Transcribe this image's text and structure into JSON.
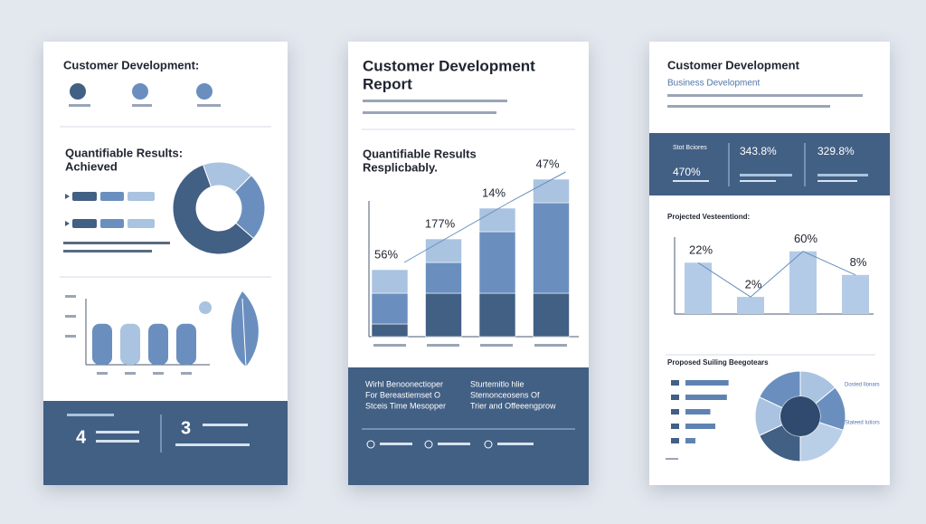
{
  "pages": [
    {
      "title": "Customer Development:",
      "heading": [
        "Quantifiable Results:",
        "Achieved"
      ],
      "donut": {
        "values": [
          18,
          24,
          58
        ],
        "colors": [
          "#a9c3e0",
          "#6a8fbf",
          "#425f84"
        ]
      },
      "bars": {
        "values": [
          62,
          62,
          62,
          62
        ],
        "colors": [
          "#6a8fbf",
          "#a9c3e0",
          "#6a8fbf",
          "#6a8fbf"
        ],
        "ylim": [
          0,
          100
        ]
      },
      "stats": [
        4,
        3
      ]
    },
    {
      "title": [
        "Customer Development",
        "Report"
      ],
      "heading": [
        "Quantifiable Results",
        "Resplicbably."
      ],
      "chart": {
        "type": "stacked-bar",
        "ylim": [
          0,
          100
        ],
        "series": [
          {
            "color": "#425f84",
            "values": [
              7,
              24,
              24,
              24
            ]
          },
          {
            "color": "#6a8fbf",
            "values": [
              17,
              17,
              34,
              50
            ]
          },
          {
            "color": "#a9c3e0",
            "values": [
              13,
              13,
              13,
              13
            ]
          }
        ],
        "annotations": [
          "56%",
          "177%",
          "14%",
          "47%"
        ]
      },
      "footer": {
        "left": [
          "Wirhl Benoonectioper",
          "For Bereastiemset O",
          "Stceis Time Mesopper"
        ],
        "right": [
          "Sturtemitlo hlie",
          "Stemonceosens Of",
          "Trier and Offeeengprow"
        ]
      }
    },
    {
      "title": "Customer Development",
      "subtitle": "Business Development",
      "band": {
        "label": "Stot Bciores",
        "stats": [
          "343.8%",
          "329.8%",
          "470%"
        ]
      },
      "section": "Projected Vesteentiond:",
      "chart": {
        "type": "bar",
        "ylim": [
          0,
          100
        ],
        "values": [
          63,
          21,
          77,
          48
        ],
        "color": "#b3cbe6",
        "annotations": [
          "22%",
          "2%",
          "60%",
          "8%"
        ]
      },
      "section2": "Proposed Suiling Beegotears",
      "hbars": {
        "values": [
          52,
          50,
          30,
          36,
          12
        ],
        "xlim": [
          0,
          60
        ],
        "color": "#5f82b3"
      },
      "pie": {
        "values": [
          14,
          16,
          20,
          18,
          14,
          18
        ],
        "colors": [
          "#a9c3e0",
          "#6a8fbf",
          "#b9cfe8",
          "#425f84",
          "#a9c3e0",
          "#6a8fbf"
        ]
      },
      "pie_labels": [
        "Dosted Ilonars",
        "Stateed Iutiors"
      ]
    }
  ]
}
